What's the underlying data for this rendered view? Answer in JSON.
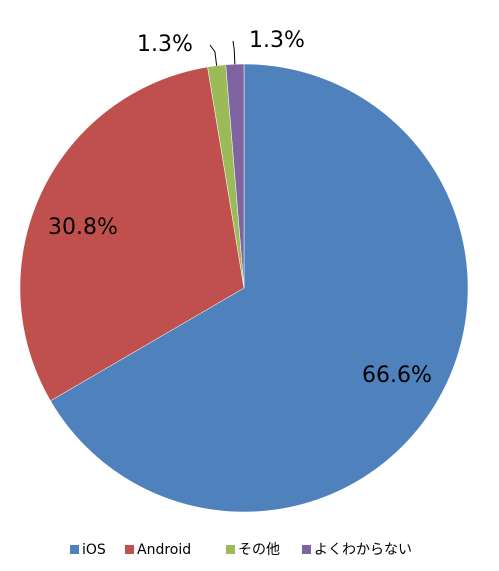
{
  "chart_data": {
    "type": "pie",
    "categories": [
      "iOS",
      "Android",
      "その他",
      "よくわからない"
    ],
    "values": [
      66.6,
      30.8,
      1.3,
      1.3
    ],
    "value_labels": [
      "66.6%",
      "30.8%",
      "1.3%",
      "1.3%"
    ],
    "colors": [
      "#4f81bd",
      "#c0504d",
      "#9bbb59",
      "#8064a2"
    ],
    "legend": "bottom"
  }
}
